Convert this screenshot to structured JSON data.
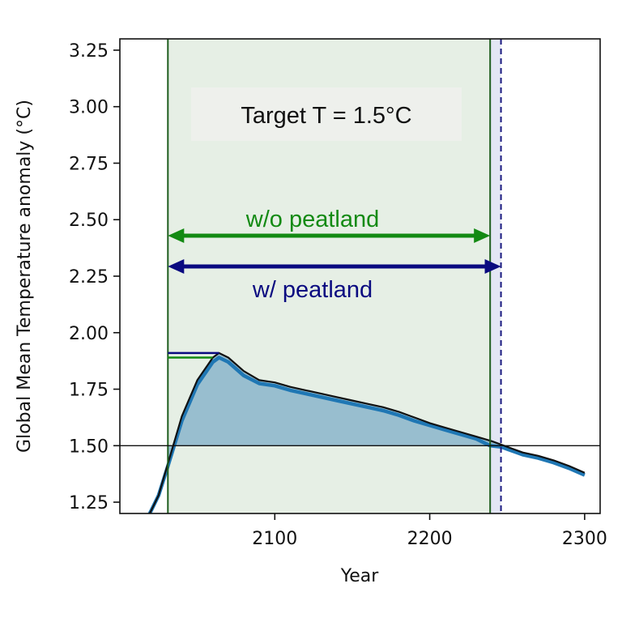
{
  "chart_data": {
    "type": "line",
    "title": "",
    "xlabel": "Year",
    "ylabel": "Global Mean Temperature anomaly (°C)",
    "xlim": [
      2000,
      2310
    ],
    "ylim": [
      1.2,
      3.3
    ],
    "x_ticks": [
      2100,
      2200,
      2300
    ],
    "y_ticks": [
      1.25,
      1.5,
      1.75,
      2.0,
      2.25,
      2.5,
      2.75,
      3.0,
      3.25
    ],
    "y_tick_labels": [
      "1.25",
      "1.50",
      "1.75",
      "2.00",
      "2.25",
      "2.50",
      "2.75",
      "3.00",
      "3.25"
    ],
    "grid": false,
    "target_line": 1.5,
    "annotations": {
      "target_label": "Target T = 1.5°C",
      "wo_peatland_label": "w/o peatland",
      "w_peatland_label": "w/ peatland"
    },
    "overshoot_window": {
      "start": 2031,
      "end_wo_peatland": 2239,
      "end_w_peatland": 2246
    },
    "peak": {
      "w_peatland": 1.91,
      "wo_peatland": 1.89,
      "bracket_x": [
        2031,
        2064
      ]
    },
    "series": [
      {
        "id": "w_peatland",
        "color": "#111111",
        "x": [
          2016,
          2020,
          2025,
          2031,
          2040,
          2050,
          2060,
          2064,
          2070,
          2080,
          2090,
          2100,
          2110,
          2120,
          2130,
          2140,
          2150,
          2160,
          2170,
          2180,
          2190,
          2200,
          2210,
          2220,
          2230,
          2240,
          2246,
          2250,
          2260,
          2270,
          2280,
          2290,
          2300
        ],
        "y": [
          1.16,
          1.21,
          1.28,
          1.42,
          1.63,
          1.79,
          1.89,
          1.91,
          1.89,
          1.83,
          1.79,
          1.78,
          1.76,
          1.745,
          1.73,
          1.715,
          1.7,
          1.685,
          1.67,
          1.65,
          1.625,
          1.6,
          1.58,
          1.56,
          1.54,
          1.52,
          1.505,
          1.495,
          1.47,
          1.455,
          1.435,
          1.41,
          1.38
        ]
      },
      {
        "id": "wo_peatland",
        "color": "#1f77b4",
        "x": [
          2016,
          2020,
          2025,
          2031,
          2040,
          2050,
          2060,
          2064,
          2070,
          2080,
          2090,
          2100,
          2110,
          2120,
          2130,
          2140,
          2150,
          2160,
          2170,
          2180,
          2190,
          2200,
          2210,
          2220,
          2230,
          2239,
          2246,
          2250,
          2260,
          2270,
          2280,
          2290,
          2300
        ],
        "y": [
          1.16,
          1.21,
          1.28,
          1.41,
          1.61,
          1.77,
          1.87,
          1.89,
          1.87,
          1.81,
          1.775,
          1.765,
          1.745,
          1.73,
          1.715,
          1.7,
          1.685,
          1.67,
          1.655,
          1.635,
          1.61,
          1.59,
          1.57,
          1.55,
          1.53,
          1.5,
          1.495,
          1.485,
          1.46,
          1.445,
          1.425,
          1.4,
          1.37
        ]
      }
    ],
    "colors": {
      "window_fill": "#e6efe5",
      "window_border": "#1f5e1f",
      "wo_peatland_arrow": "#138a13",
      "w_peatland_arrow": "#0a0a80",
      "dashed_line": "#1a1a80",
      "dashed_band": "#e3e6f4",
      "area_fill": "#8fb8cc",
      "label_box": "#eef0ec"
    }
  }
}
